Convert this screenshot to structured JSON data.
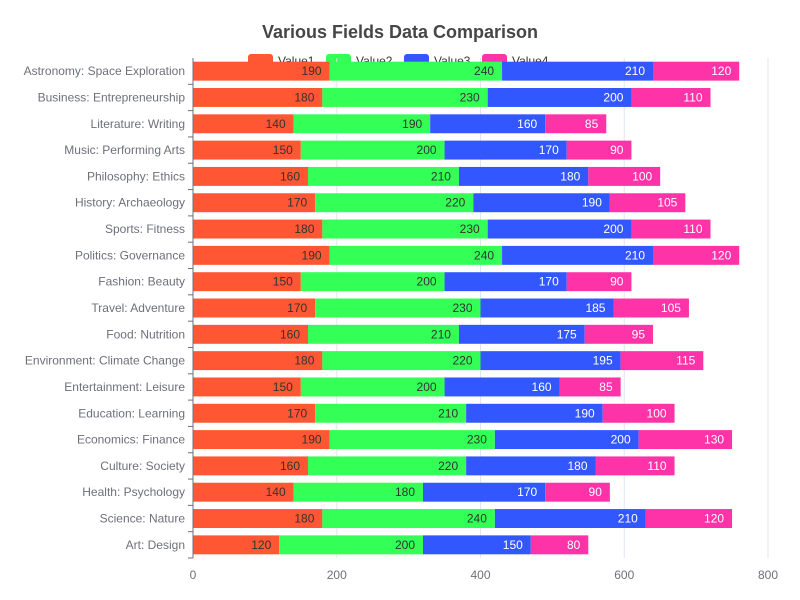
{
  "chart_data": {
    "type": "bar",
    "orientation": "horizontal",
    "stacked": true,
    "title": "Various Fields Data Comparison",
    "xlabel": "",
    "ylabel": "",
    "xlim": [
      0,
      800
    ],
    "xticks": [
      0,
      200,
      400,
      600,
      800
    ],
    "grid": "vertical",
    "legend_position": "top",
    "categories": [
      "Art: Design",
      "Science: Nature",
      "Health: Psychology",
      "Culture: Society",
      "Economics: Finance",
      "Education: Learning",
      "Entertainment: Leisure",
      "Environment: Climate Change",
      "Food: Nutrition",
      "Travel: Adventure",
      "Fashion: Beauty",
      "Politics: Governance",
      "Sports: Fitness",
      "History: Archaeology",
      "Philosophy: Ethics",
      "Music: Performing Arts",
      "Literature: Writing",
      "Business: Entrepreneurship",
      "Astronomy: Space Exploration"
    ],
    "series": [
      {
        "name": "Value1",
        "color": "#ff5733",
        "label_color": "#333333",
        "values": [
          120,
          180,
          140,
          160,
          190,
          170,
          150,
          180,
          160,
          170,
          150,
          190,
          180,
          170,
          160,
          150,
          140,
          180,
          190
        ]
      },
      {
        "name": "Value2",
        "color": "#33ff57",
        "label_color": "#333333",
        "values": [
          200,
          240,
          180,
          220,
          230,
          210,
          200,
          220,
          210,
          230,
          200,
          240,
          230,
          220,
          210,
          200,
          190,
          230,
          240
        ]
      },
      {
        "name": "Value3",
        "color": "#3357ff",
        "label_color": "#ffffff",
        "values": [
          150,
          210,
          170,
          180,
          200,
          190,
          160,
          195,
          175,
          185,
          170,
          210,
          200,
          190,
          180,
          170,
          160,
          200,
          210
        ]
      },
      {
        "name": "Value4",
        "color": "#ff33a8",
        "label_color": "#ffffff",
        "values": [
          80,
          120,
          90,
          110,
          130,
          100,
          85,
          115,
          95,
          105,
          90,
          120,
          110,
          105,
          100,
          90,
          85,
          110,
          120
        ]
      }
    ]
  }
}
